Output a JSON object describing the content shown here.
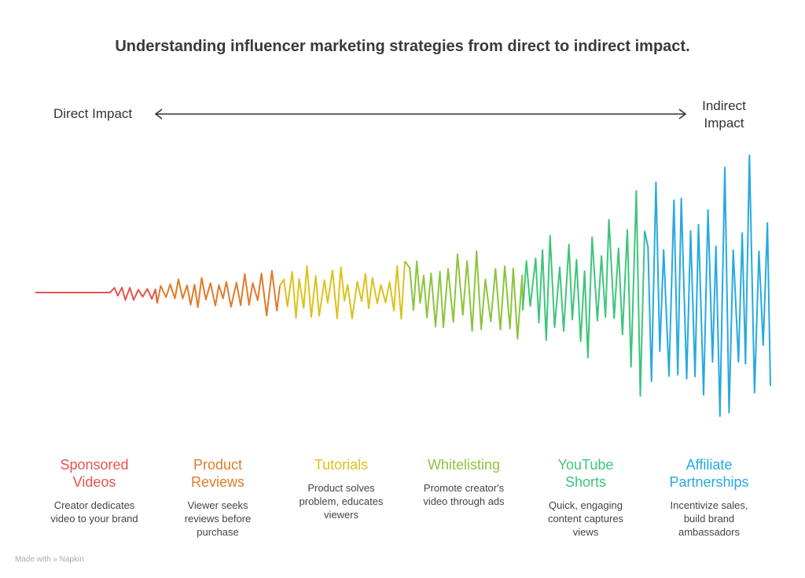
{
  "title": "Understanding influencer marketing strategies from direct to indirect impact.",
  "axis": {
    "left_label": "Direct Impact",
    "right_label_line1": "Indirect",
    "right_label_line2": "Impact"
  },
  "stages": [
    {
      "title_line1": "Sponsored",
      "title_line2": "Videos",
      "desc_line1": "Creator dedicates",
      "desc_line2": "video to your brand",
      "desc_line3": "",
      "color": "#e8534f"
    },
    {
      "title_line1": "Product",
      "title_line2": "Reviews",
      "desc_line1": "Viewer seeks",
      "desc_line2": "reviews before",
      "desc_line3": "purchase",
      "color": "#e07b2a"
    },
    {
      "title_line1": "Tutorials",
      "title_line2": "",
      "desc_line1": "Product solves",
      "desc_line2": "problem, educates",
      "desc_line3": "viewers",
      "color": "#dcc21c"
    },
    {
      "title_line1": "Whitelisting",
      "title_line2": "",
      "desc_line1": "Promote creator's",
      "desc_line2": "video through ads",
      "desc_line3": "",
      "color": "#8cc43c"
    },
    {
      "title_line1": "YouTube",
      "title_line2": "Shorts",
      "desc_line1": "Quick, engaging",
      "desc_line2": "content captures",
      "desc_line3": "views",
      "color": "#3ec57a"
    },
    {
      "title_line1": "Affiliate",
      "title_line2": "Partnerships",
      "desc_line1": "Incentivize sales,",
      "desc_line2": "build brand",
      "desc_line3": "ambassadors",
      "color": "#27a9e0"
    }
  ],
  "footer": {
    "made_with": "Made with",
    "brand": "Napkin"
  }
}
